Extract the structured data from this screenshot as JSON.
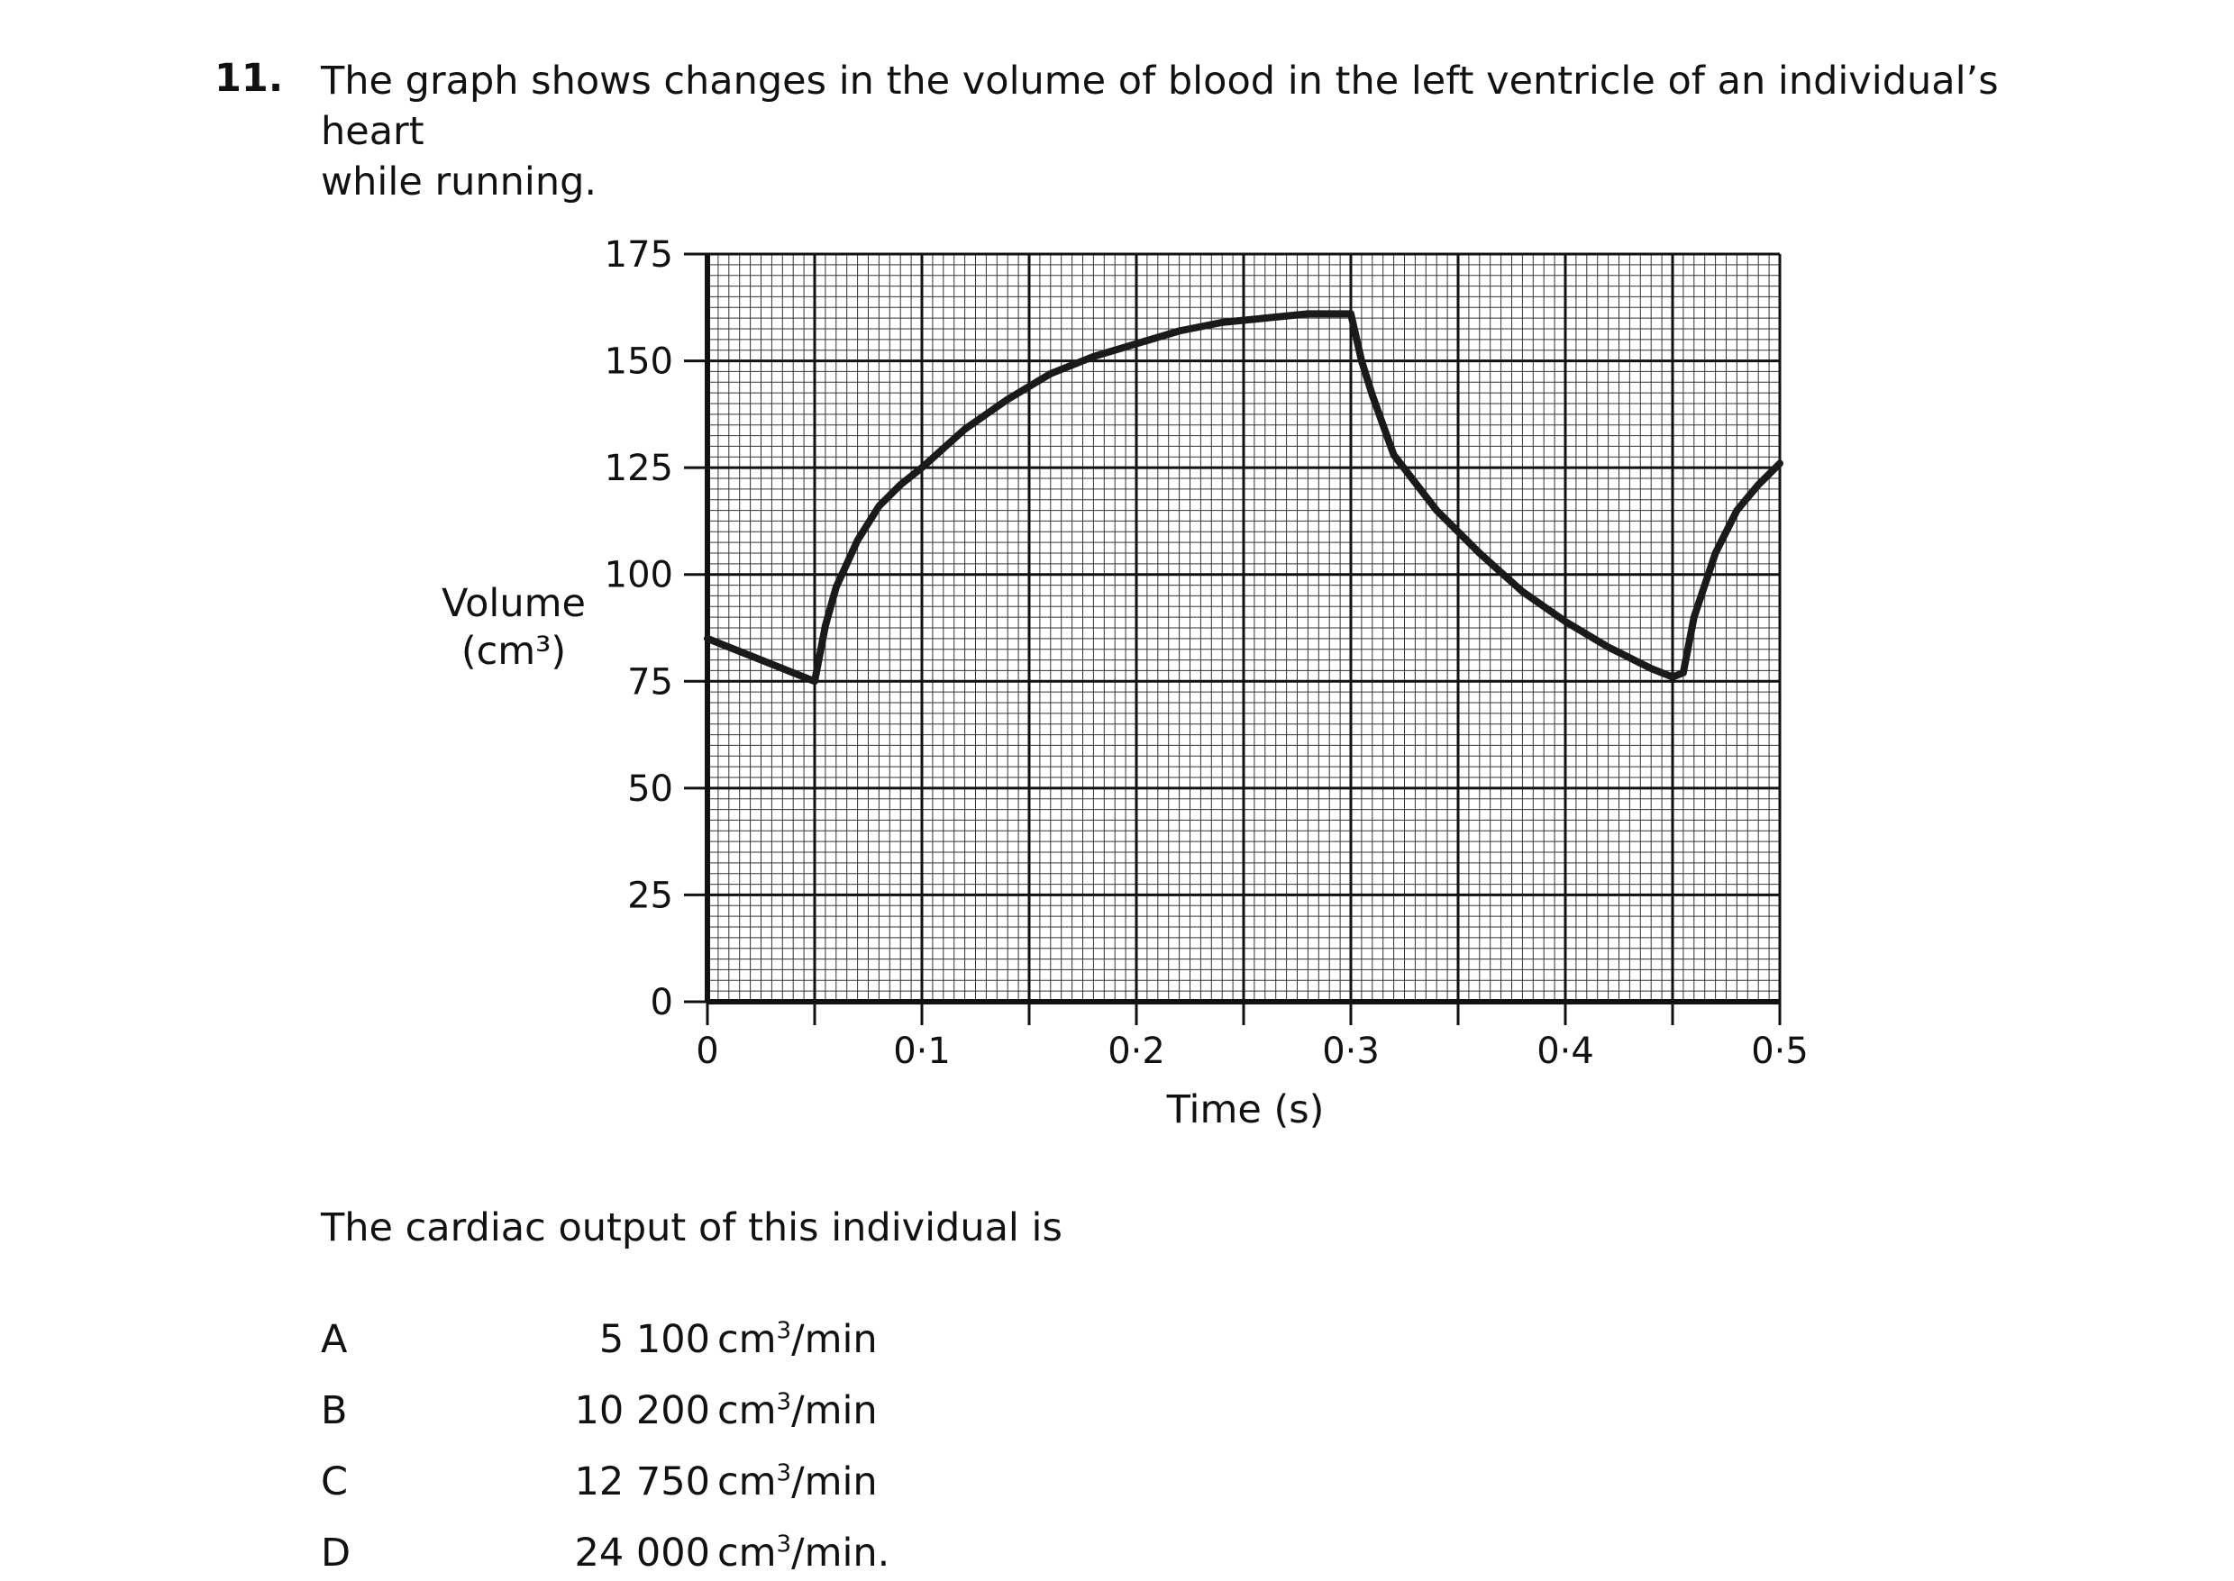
{
  "question": {
    "number": "11.",
    "line1": "The graph shows changes in the volume of blood in the left ventricle of an individual’s heart",
    "line2": "while running."
  },
  "chart_data": {
    "type": "line",
    "title": "",
    "xlabel": "Time (s)",
    "ylabel_line1": "Volume",
    "ylabel_line2": "(cm³)",
    "xlim": [
      0,
      0.5
    ],
    "ylim": [
      0,
      175
    ],
    "x_ticks": [
      0,
      0.1,
      0.2,
      0.3,
      0.4,
      0.5
    ],
    "x_tick_labels": [
      "0",
      "0·1",
      "0·2",
      "0·3",
      "0·4",
      "0·5"
    ],
    "y_ticks": [
      0,
      25,
      50,
      75,
      100,
      125,
      150,
      175
    ],
    "y_tick_labels": [
      "0",
      "25",
      "50",
      "75",
      "100",
      "125",
      "150",
      "175"
    ],
    "grid": true,
    "series": [
      {
        "x": [
          0,
          0.02,
          0.04,
          0.05,
          0.055,
          0.06,
          0.07,
          0.08,
          0.09,
          0.1,
          0.12,
          0.14,
          0.16,
          0.18,
          0.2,
          0.22,
          0.24,
          0.26,
          0.28,
          0.3,
          0.305,
          0.31,
          0.32,
          0.34,
          0.36,
          0.38,
          0.4,
          0.42,
          0.44,
          0.45,
          0.455,
          0.46,
          0.47,
          0.48,
          0.49,
          0.5
        ],
        "y": [
          85,
          81,
          77,
          75,
          88,
          97,
          108,
          116,
          121,
          125,
          134,
          141,
          147,
          151,
          154,
          157,
          159,
          160,
          161,
          161,
          150,
          142,
          128,
          115,
          105,
          96,
          89,
          83,
          78,
          76,
          77,
          90,
          105,
          115,
          121,
          126
        ]
      }
    ]
  },
  "prompt": "The cardiac output of this individual is",
  "options": [
    {
      "letter": "A",
      "value": "5 100",
      "unit": "cm",
      "exp": "3",
      "suffix": "/min"
    },
    {
      "letter": "B",
      "value": "10 200",
      "unit": "cm",
      "exp": "3",
      "suffix": "/min"
    },
    {
      "letter": "C",
      "value": "12 750",
      "unit": "cm",
      "exp": "3",
      "suffix": "/min"
    },
    {
      "letter": "D",
      "value": "24 000",
      "unit": "cm",
      "exp": "3",
      "suffix": "/min."
    }
  ]
}
